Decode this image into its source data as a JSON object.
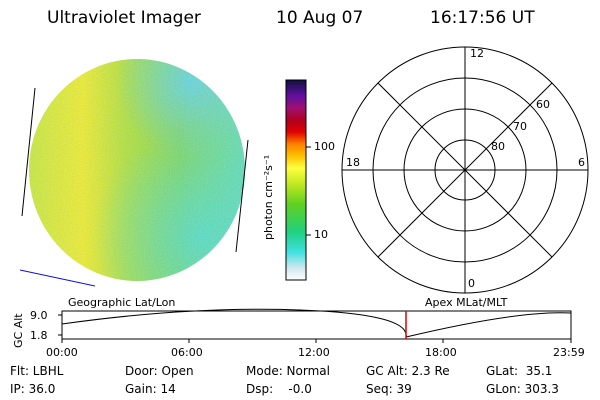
{
  "header": {
    "instrument": "Ultraviolet Imager",
    "date": "10 Aug 07",
    "time": "16:17:56 UT"
  },
  "colorbar": {
    "unit_label": "photon cm⁻²s⁻¹",
    "ticks": [
      "100",
      "10"
    ]
  },
  "polar_plot": {
    "mlt_labels": [
      "12",
      "18",
      "6",
      "0"
    ],
    "lat_labels": [
      "60",
      "70",
      "80"
    ]
  },
  "timeline": {
    "left_title": "Geographic Lat/Lon",
    "right_title": "Apex MLat/MLT",
    "y_axis_label": "GC Alt",
    "y_ticks": [
      "9.0",
      "1.8"
    ],
    "x_ticks": [
      "00:00",
      "06:00",
      "12:00",
      "18:00",
      "23:59"
    ],
    "marker_time": "16:17:56",
    "y_range": [
      1.8,
      9.0
    ]
  },
  "status": {
    "flt": "Flt: LBHL",
    "door": "Door: Open",
    "mode": "Mode: Normal",
    "gc_alt": "GC Alt: 2.3 Re",
    "glat": "GLat:  35.1",
    "ip": "IP: 36.0",
    "gain": "Gain: 14",
    "dsp": "Dsp:    -0.0",
    "seq": "Seq: 39",
    "glon": "GLon: 303.3"
  },
  "colors": {
    "disk_yellow": "#f0f02a",
    "disk_green": "#8fdc3a",
    "disk_cyan": "#58e2c0",
    "marker": "#e00000",
    "horizon_line": "#1010e0"
  }
}
